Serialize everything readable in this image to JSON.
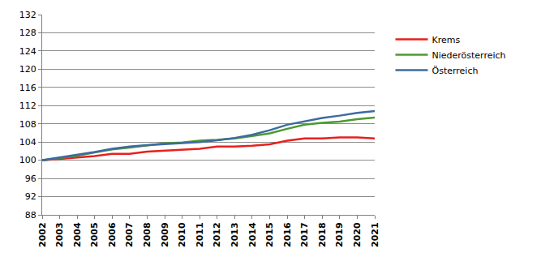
{
  "chart_data": {
    "type": "line",
    "x": [
      2002,
      2003,
      2004,
      2005,
      2006,
      2007,
      2008,
      2009,
      2010,
      2011,
      2012,
      2013,
      2014,
      2015,
      2016,
      2017,
      2018,
      2019,
      2020,
      2021
    ],
    "series": [
      {
        "name": "Krems",
        "color": "#e8201c",
        "values": [
          100,
          100.3,
          100.5,
          100.9,
          101.4,
          101.4,
          101.9,
          102.1,
          102.3,
          102.5,
          103.0,
          103.0,
          103.2,
          103.5,
          104.3,
          104.8,
          104.8,
          105.0,
          105.0,
          104.8
        ]
      },
      {
        "name": "Niederösterreich",
        "color": "#4a9b2f",
        "values": [
          100,
          100.5,
          101.0,
          101.7,
          102.4,
          102.8,
          103.2,
          103.7,
          103.9,
          104.3,
          104.5,
          104.8,
          105.3,
          105.9,
          106.9,
          107.8,
          108.2,
          108.5,
          109.0,
          109.4
        ]
      },
      {
        "name": "Österreich",
        "color": "#3e6aa0",
        "values": [
          100,
          100.6,
          101.1,
          101.8,
          102.5,
          103.0,
          103.3,
          103.5,
          103.7,
          104.0,
          104.4,
          104.9,
          105.6,
          106.6,
          107.8,
          108.6,
          109.3,
          109.8,
          110.4,
          110.8
        ]
      }
    ],
    "xlim": [
      2002,
      2021
    ],
    "xticks": [
      2002,
      2003,
      2004,
      2005,
      2006,
      2007,
      2008,
      2009,
      2010,
      2011,
      2012,
      2013,
      2014,
      2015,
      2016,
      2017,
      2018,
      2019,
      2020,
      2021
    ],
    "ylim": [
      88,
      132
    ],
    "yticks": [
      88,
      92,
      96,
      100,
      104,
      108,
      112,
      116,
      120,
      124,
      128,
      132
    ],
    "grid": true,
    "legend": "right"
  }
}
